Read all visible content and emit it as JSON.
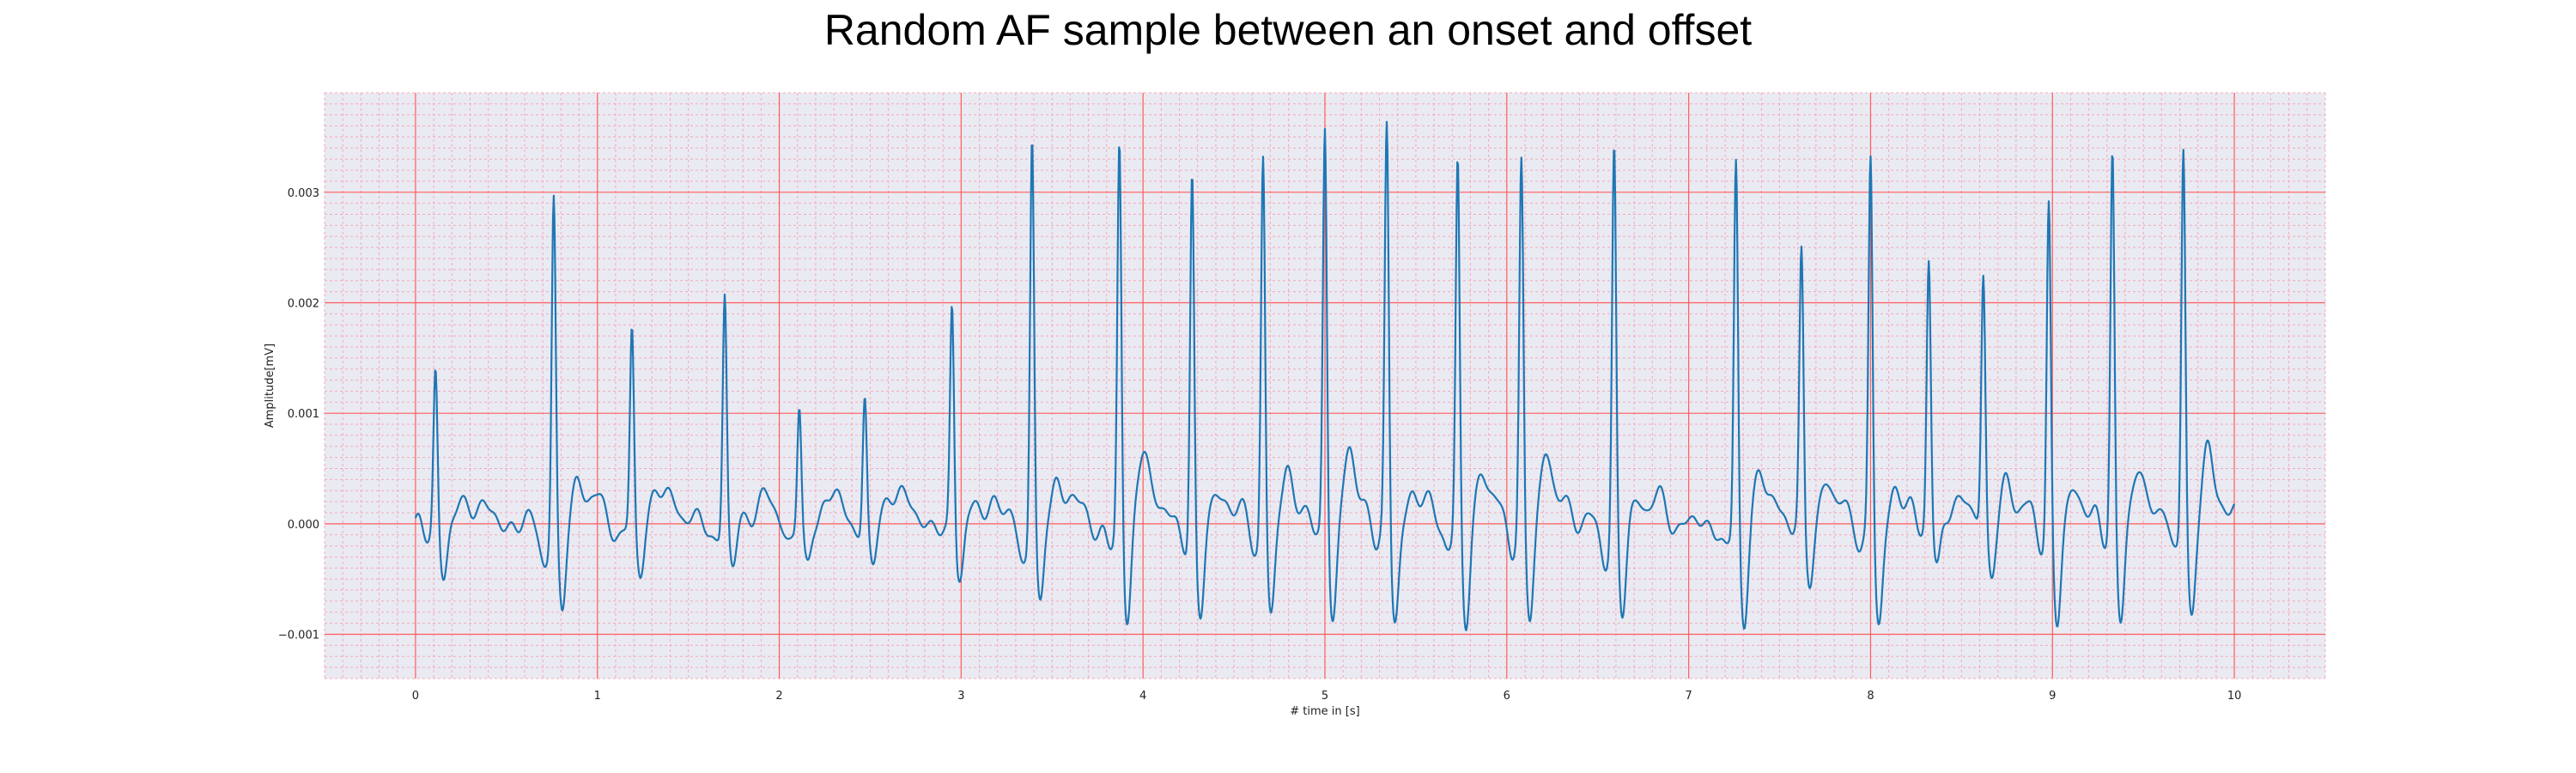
{
  "chart_data": {
    "type": "line",
    "title": "Random AF sample between an onset and offset",
    "xlabel": "# time in [s]",
    "ylabel": "Amplitude[mV]",
    "xlim": [
      -0.5,
      10.5
    ],
    "ylim": [
      -0.0014,
      0.0039
    ],
    "x_ticks": [
      0,
      1,
      2,
      3,
      4,
      5,
      6,
      7,
      8,
      9,
      10
    ],
    "x_tick_labels": [
      "0",
      "1",
      "2",
      "3",
      "4",
      "5",
      "6",
      "7",
      "8",
      "9",
      "10"
    ],
    "y_ticks": [
      -0.001,
      0,
      0.001,
      0.002,
      0.003
    ],
    "y_tick_labels": [
      "−0.001",
      "0.000",
      "0.001",
      "0.002",
      "0.003"
    ],
    "grid": true,
    "minor_grid": true,
    "legend": false,
    "colors": {
      "line": "#1f77b4",
      "plot_background": "#eaeaf2",
      "major_grid": "#ff5c5c",
      "minor_grid": "#f4a9b8"
    },
    "series": [
      {
        "beats": [
          {
            "t": 0.11,
            "peak": 0.00145
          },
          {
            "t": 0.76,
            "peak": 0.00303
          },
          {
            "t": 1.19,
            "peak": 0.0018
          },
          {
            "t": 1.7,
            "peak": 0.00217
          },
          {
            "t": 2.11,
            "peak": 0.00112
          },
          {
            "t": 2.47,
            "peak": 0.00122
          },
          {
            "t": 2.95,
            "peak": 0.0021
          },
          {
            "t": 3.39,
            "peak": 0.00366
          },
          {
            "t": 3.87,
            "peak": 0.00358
          },
          {
            "t": 4.27,
            "peak": 0.00335
          },
          {
            "t": 4.66,
            "peak": 0.00352
          },
          {
            "t": 5.0,
            "peak": 0.00373
          },
          {
            "t": 5.34,
            "peak": 0.00364
          },
          {
            "t": 5.73,
            "peak": 0.00333
          },
          {
            "t": 6.08,
            "peak": 0.00326
          },
          {
            "t": 6.59,
            "peak": 0.00349
          },
          {
            "t": 7.26,
            "peak": 0.0034
          },
          {
            "t": 7.62,
            "peak": 0.00244
          },
          {
            "t": 8.0,
            "peak": 0.00339
          },
          {
            "t": 8.32,
            "peak": 0.00237
          },
          {
            "t": 8.62,
            "peak": 0.00227
          },
          {
            "t": 8.98,
            "peak": 0.003
          },
          {
            "t": 9.33,
            "peak": 0.00345
          },
          {
            "t": 9.72,
            "peak": 0.00355
          }
        ]
      }
    ]
  }
}
